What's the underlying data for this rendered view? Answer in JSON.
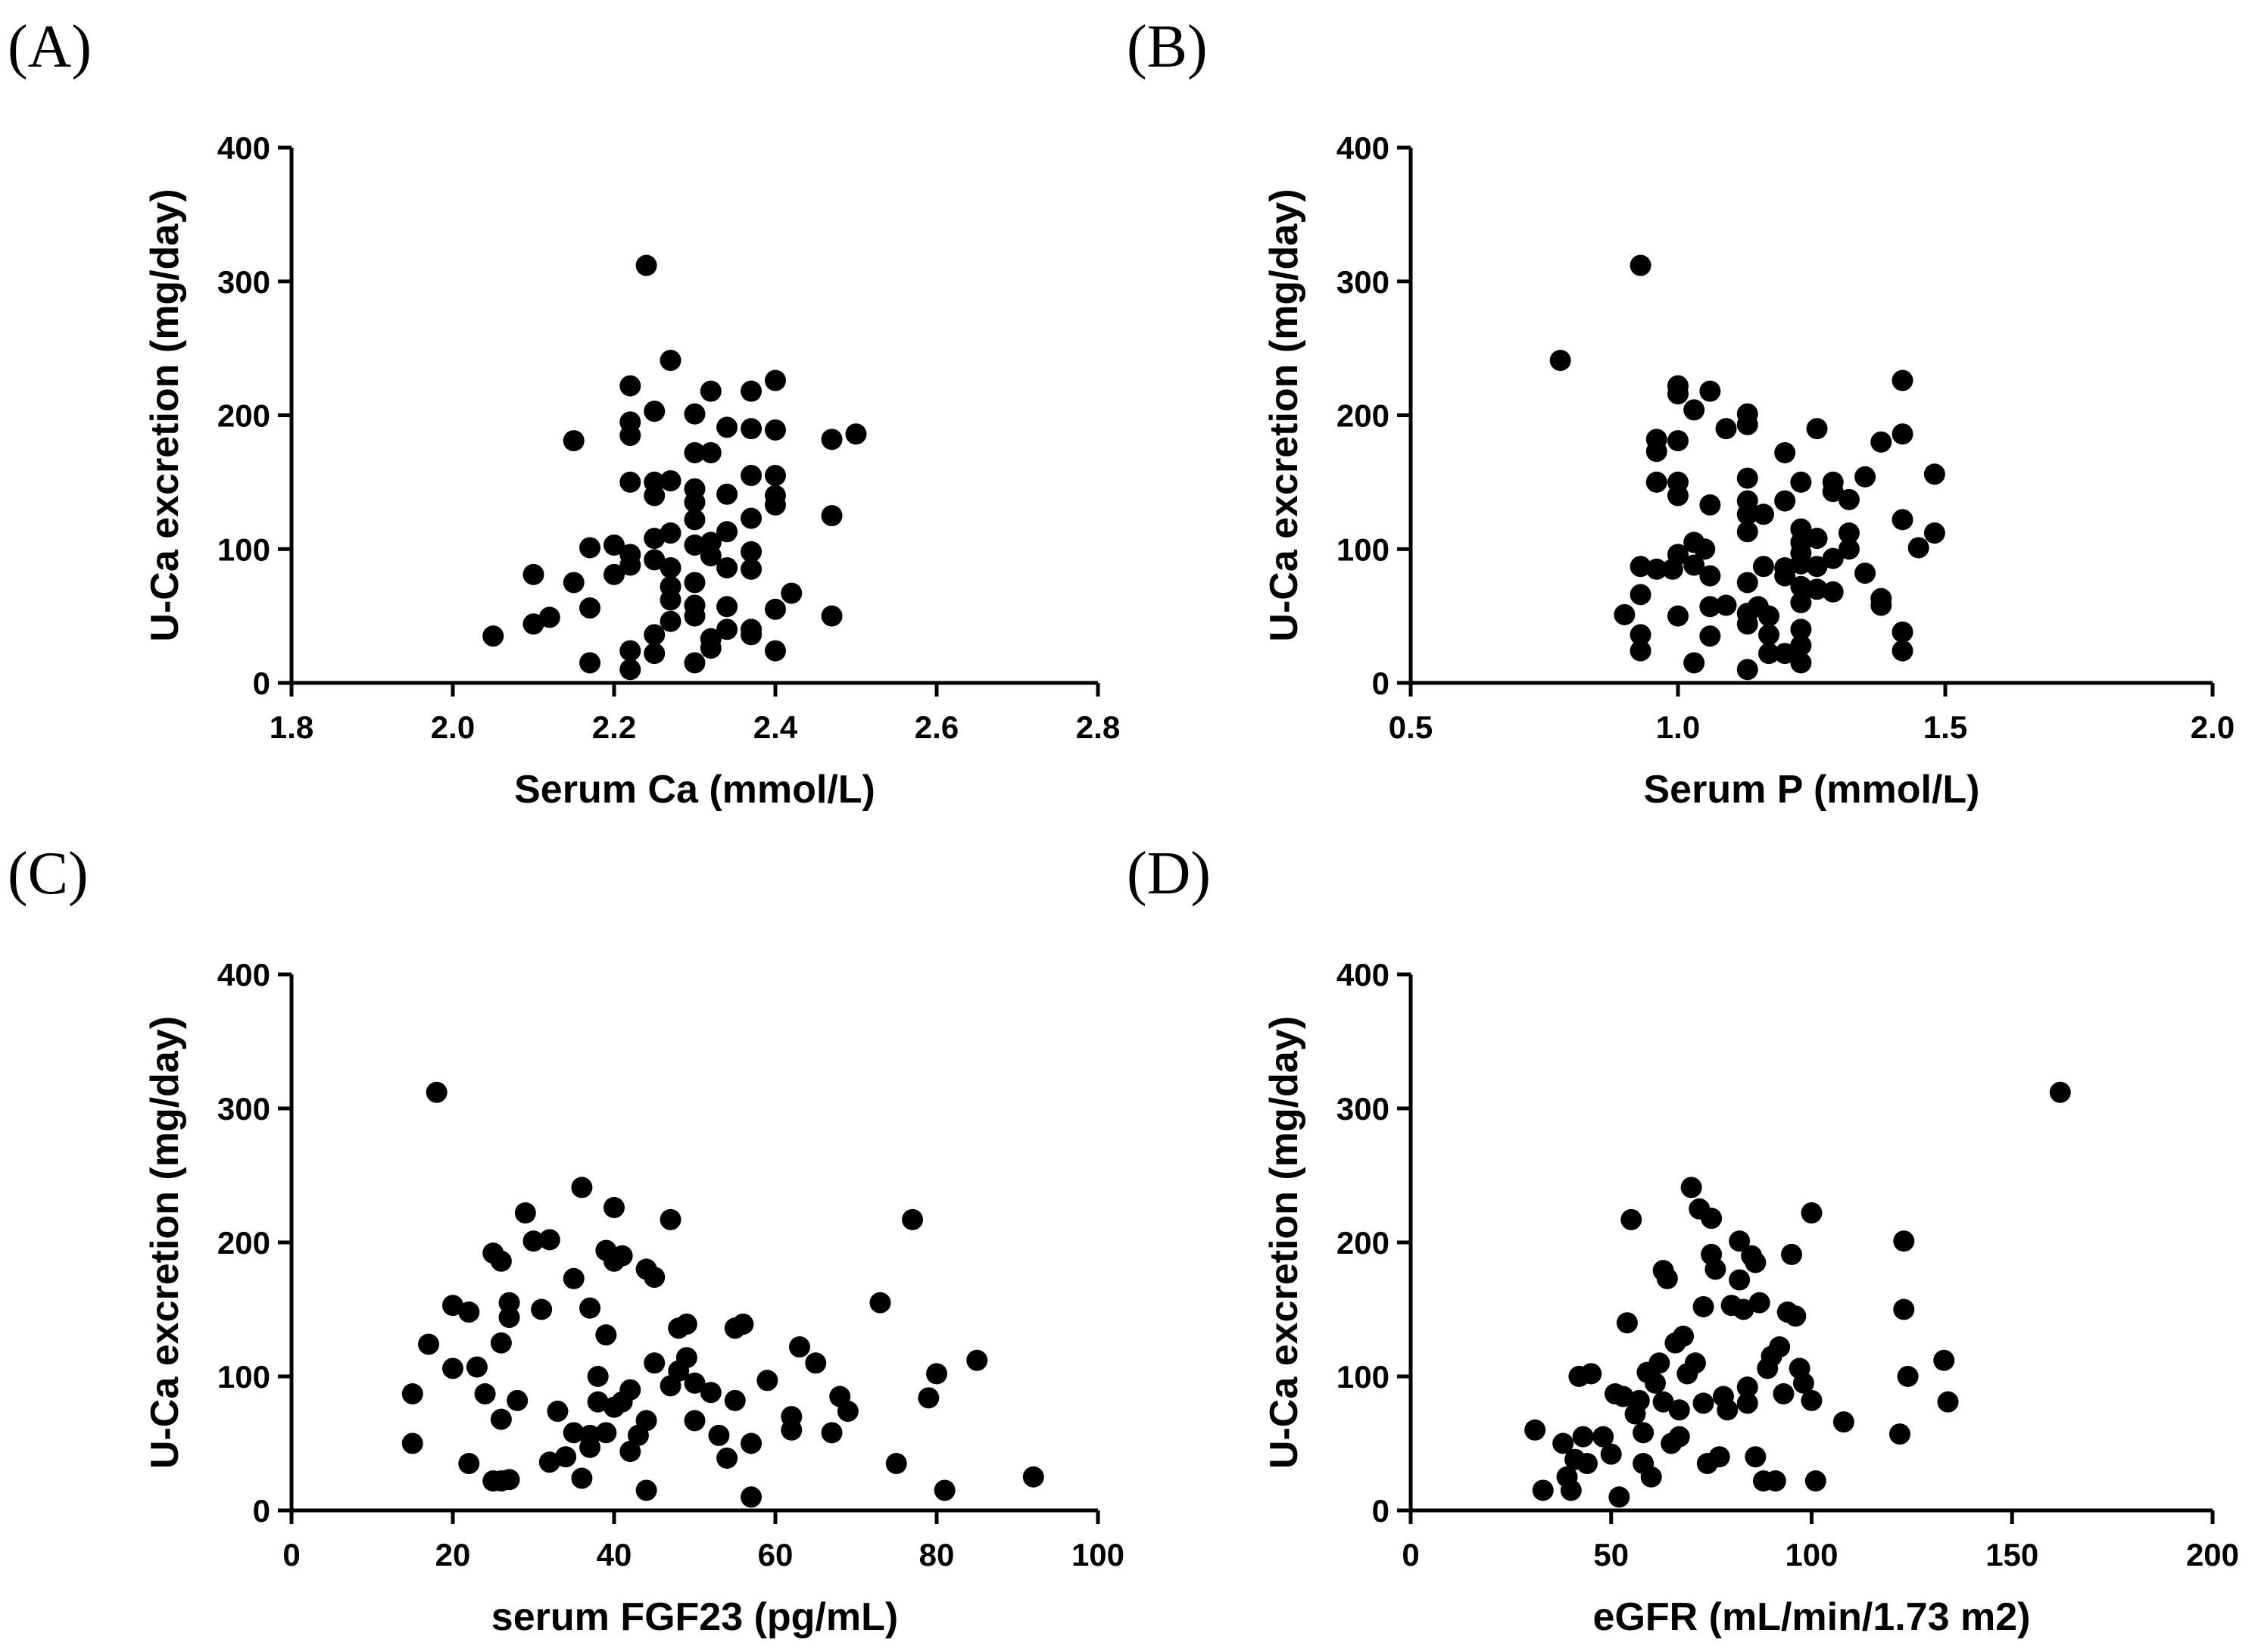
{
  "chart_data": [
    {
      "type": "scatter",
      "panel_label": "(A)",
      "xlabel": "Serum Ca (mmol/L)",
      "ylabel": "U-Ca excretion (mg/day)",
      "xlim": [
        1.8,
        2.8
      ],
      "ylim": [
        0,
        400
      ],
      "xticks": [
        "1.8",
        "2.0",
        "2.2",
        "2.4",
        "2.6",
        "2.8"
      ],
      "yticks": [
        "0",
        "100",
        "200",
        "300",
        "400"
      ],
      "points": [
        [
          2.05,
          35
        ],
        [
          2.1,
          44
        ],
        [
          2.1,
          81
        ],
        [
          2.12,
          49
        ],
        [
          2.15,
          75
        ],
        [
          2.15,
          181
        ],
        [
          2.17,
          15
        ],
        [
          2.17,
          56
        ],
        [
          2.17,
          101
        ],
        [
          2.2,
          103
        ],
        [
          2.2,
          81
        ],
        [
          2.22,
          222
        ],
        [
          2.22,
          195
        ],
        [
          2.22,
          185
        ],
        [
          2.22,
          150
        ],
        [
          2.22,
          96
        ],
        [
          2.22,
          88
        ],
        [
          2.22,
          24
        ],
        [
          2.22,
          10
        ],
        [
          2.24,
          312
        ],
        [
          2.25,
          203
        ],
        [
          2.25,
          150
        ],
        [
          2.25,
          140
        ],
        [
          2.25,
          108
        ],
        [
          2.25,
          92
        ],
        [
          2.25,
          36
        ],
        [
          2.25,
          22
        ],
        [
          2.27,
          241
        ],
        [
          2.27,
          151
        ],
        [
          2.27,
          112
        ],
        [
          2.27,
          86
        ],
        [
          2.27,
          72
        ],
        [
          2.27,
          62
        ],
        [
          2.27,
          46
        ],
        [
          2.3,
          201
        ],
        [
          2.3,
          172
        ],
        [
          2.3,
          145
        ],
        [
          2.3,
          135
        ],
        [
          2.3,
          122
        ],
        [
          2.3,
          103
        ],
        [
          2.3,
          75
        ],
        [
          2.3,
          58
        ],
        [
          2.3,
          50
        ],
        [
          2.3,
          15
        ],
        [
          2.32,
          218
        ],
        [
          2.32,
          172
        ],
        [
          2.32,
          105
        ],
        [
          2.32,
          95
        ],
        [
          2.32,
          33
        ],
        [
          2.32,
          26
        ],
        [
          2.34,
          191
        ],
        [
          2.34,
          141
        ],
        [
          2.34,
          113
        ],
        [
          2.34,
          86
        ],
        [
          2.34,
          57
        ],
        [
          2.34,
          40
        ],
        [
          2.37,
          218
        ],
        [
          2.37,
          190
        ],
        [
          2.37,
          155
        ],
        [
          2.37,
          123
        ],
        [
          2.37,
          98
        ],
        [
          2.37,
          85
        ],
        [
          2.37,
          40
        ],
        [
          2.37,
          36
        ],
        [
          2.4,
          226
        ],
        [
          2.4,
          189
        ],
        [
          2.4,
          155
        ],
        [
          2.4,
          140
        ],
        [
          2.4,
          133
        ],
        [
          2.4,
          55
        ],
        [
          2.4,
          24
        ],
        [
          2.42,
          67
        ],
        [
          2.47,
          182
        ],
        [
          2.47,
          125
        ],
        [
          2.47,
          50
        ],
        [
          2.5,
          186
        ]
      ]
    },
    {
      "type": "scatter",
      "panel_label": "(B)",
      "xlabel": "Serum P (mmol/L)",
      "ylabel": "U-Ca excretion (mg/day)",
      "xlim": [
        0.5,
        2.0
      ],
      "ylim": [
        0,
        400
      ],
      "xticks": [
        "0.5",
        "1.0",
        "1.5",
        "2.0"
      ],
      "yticks": [
        "0",
        "100",
        "200",
        "300",
        "400"
      ],
      "points": [
        [
          0.78,
          241
        ],
        [
          0.9,
          51
        ],
        [
          0.93,
          312
        ],
        [
          0.93,
          87
        ],
        [
          0.93,
          66
        ],
        [
          0.93,
          36
        ],
        [
          0.93,
          24
        ],
        [
          0.96,
          182
        ],
        [
          0.96,
          173
        ],
        [
          0.96,
          150
        ],
        [
          0.96,
          85
        ],
        [
          0.99,
          85
        ],
        [
          1.0,
          222
        ],
        [
          1.0,
          216
        ],
        [
          1.0,
          181
        ],
        [
          1.0,
          150
        ],
        [
          1.0,
          140
        ],
        [
          1.0,
          96
        ],
        [
          1.0,
          50
        ],
        [
          1.03,
          204
        ],
        [
          1.03,
          105
        ],
        [
          1.03,
          88
        ],
        [
          1.03,
          15
        ],
        [
          1.05,
          100
        ],
        [
          1.06,
          218
        ],
        [
          1.06,
          133
        ],
        [
          1.06,
          80
        ],
        [
          1.06,
          57
        ],
        [
          1.06,
          35
        ],
        [
          1.09,
          190
        ],
        [
          1.09,
          58
        ],
        [
          1.13,
          201
        ],
        [
          1.13,
          193
        ],
        [
          1.13,
          153
        ],
        [
          1.13,
          136
        ],
        [
          1.13,
          126
        ],
        [
          1.13,
          113
        ],
        [
          1.13,
          75
        ],
        [
          1.13,
          52
        ],
        [
          1.13,
          44
        ],
        [
          1.13,
          10
        ],
        [
          1.15,
          57
        ],
        [
          1.16,
          126
        ],
        [
          1.16,
          87
        ],
        [
          1.17,
          50
        ],
        [
          1.17,
          36
        ],
        [
          1.17,
          22
        ],
        [
          1.2,
          172
        ],
        [
          1.2,
          136
        ],
        [
          1.2,
          86
        ],
        [
          1.2,
          80
        ],
        [
          1.2,
          22
        ],
        [
          1.23,
          150
        ],
        [
          1.23,
          115
        ],
        [
          1.23,
          105
        ],
        [
          1.23,
          97
        ],
        [
          1.23,
          89
        ],
        [
          1.23,
          72
        ],
        [
          1.23,
          60
        ],
        [
          1.23,
          40
        ],
        [
          1.23,
          28
        ],
        [
          1.23,
          15
        ],
        [
          1.26,
          190
        ],
        [
          1.26,
          108
        ],
        [
          1.26,
          87
        ],
        [
          1.26,
          70
        ],
        [
          1.29,
          150
        ],
        [
          1.29,
          143
        ],
        [
          1.29,
          93
        ],
        [
          1.29,
          68
        ],
        [
          1.32,
          137
        ],
        [
          1.32,
          112
        ],
        [
          1.32,
          100
        ],
        [
          1.35,
          154
        ],
        [
          1.35,
          82
        ],
        [
          1.38,
          180
        ],
        [
          1.38,
          63
        ],
        [
          1.38,
          58
        ],
        [
          1.42,
          226
        ],
        [
          1.42,
          186
        ],
        [
          1.42,
          122
        ],
        [
          1.42,
          38
        ],
        [
          1.42,
          24
        ],
        [
          1.45,
          101
        ],
        [
          1.48,
          156
        ],
        [
          1.48,
          112
        ]
      ]
    },
    {
      "type": "scatter",
      "panel_label": "(C)",
      "xlabel": "serum FGF23 (pg/mL)",
      "ylabel": "U-Ca excretion (mg/day)",
      "xlim": [
        0,
        100
      ],
      "ylim": [
        0,
        400
      ],
      "xticks": [
        "0",
        "20",
        "40",
        "60",
        "80",
        "100"
      ],
      "yticks": [
        "0",
        "100",
        "200",
        "300",
        "400"
      ],
      "points": [
        [
          15,
          87
        ],
        [
          15,
          50
        ],
        [
          17,
          124
        ],
        [
          18,
          312
        ],
        [
          20,
          153
        ],
        [
          20,
          106
        ],
        [
          22,
          148
        ],
        [
          22,
          35
        ],
        [
          23,
          107
        ],
        [
          24,
          87
        ],
        [
          25,
          192
        ],
        [
          25,
          22
        ],
        [
          26,
          186
        ],
        [
          26,
          125
        ],
        [
          26,
          68
        ],
        [
          26,
          22
        ],
        [
          27,
          23
        ],
        [
          27,
          155
        ],
        [
          27,
          144
        ],
        [
          28,
          82
        ],
        [
          29,
          222
        ],
        [
          30,
          201
        ],
        [
          31,
          150
        ],
        [
          32,
          36
        ],
        [
          32,
          202
        ],
        [
          33,
          74
        ],
        [
          34,
          40
        ],
        [
          35,
          173
        ],
        [
          35,
          58
        ],
        [
          36,
          24
        ],
        [
          36,
          241
        ],
        [
          37,
          47
        ],
        [
          37,
          151
        ],
        [
          37,
          56
        ],
        [
          38,
          100
        ],
        [
          38,
          81
        ],
        [
          39,
          131
        ],
        [
          39,
          194
        ],
        [
          39,
          58
        ],
        [
          40,
          226
        ],
        [
          40,
          186
        ],
        [
          40,
          77
        ],
        [
          41,
          190
        ],
        [
          41,
          81
        ],
        [
          42,
          44
        ],
        [
          42,
          90
        ],
        [
          43,
          56
        ],
        [
          44,
          15
        ],
        [
          44,
          180
        ],
        [
          44,
          67
        ],
        [
          45,
          174
        ],
        [
          45,
          110
        ],
        [
          47,
          217
        ],
        [
          47,
          93
        ],
        [
          48,
          136
        ],
        [
          48,
          104
        ],
        [
          49,
          114
        ],
        [
          49,
          139
        ],
        [
          50,
          95
        ],
        [
          50,
          67
        ],
        [
          52,
          88
        ],
        [
          53,
          56
        ],
        [
          54,
          39
        ],
        [
          55,
          82
        ],
        [
          55,
          136
        ],
        [
          56,
          139
        ],
        [
          57,
          10
        ],
        [
          57,
          50
        ],
        [
          59,
          97
        ],
        [
          62,
          70
        ],
        [
          62,
          60
        ],
        [
          63,
          122
        ],
        [
          65,
          110
        ],
        [
          67,
          58
        ],
        [
          68,
          85
        ],
        [
          69,
          74
        ],
        [
          73,
          155
        ],
        [
          75,
          35
        ],
        [
          77,
          217
        ],
        [
          79,
          84
        ],
        [
          80,
          102
        ],
        [
          81,
          15
        ],
        [
          85,
          112
        ],
        [
          92,
          25
        ]
      ]
    },
    {
      "type": "scatter",
      "panel_label": "(D)",
      "xlabel": "eGFR (mL/min/1.73 m2)",
      "ylabel": "U-Ca excretion (mg/day)",
      "xlim": [
        0,
        200
      ],
      "ylim": [
        0,
        400
      ],
      "xticks": [
        "0",
        "50",
        "100",
        "150",
        "200"
      ],
      "yticks": [
        "0",
        "100",
        "200",
        "300",
        "400"
      ],
      "points": [
        [
          31,
          60
        ],
        [
          33,
          15
        ],
        [
          38,
          50
        ],
        [
          39,
          25
        ],
        [
          40,
          15
        ],
        [
          41,
          38
        ],
        [
          42,
          100
        ],
        [
          43,
          55
        ],
        [
          44,
          35
        ],
        [
          45,
          102
        ],
        [
          48,
          55
        ],
        [
          50,
          42
        ],
        [
          51,
          87
        ],
        [
          52,
          10
        ],
        [
          53,
          85
        ],
        [
          54,
          140
        ],
        [
          55,
          217
        ],
        [
          56,
          72
        ],
        [
          57,
          82
        ],
        [
          58,
          58
        ],
        [
          58,
          35
        ],
        [
          59,
          103
        ],
        [
          60,
          25
        ],
        [
          61,
          95
        ],
        [
          62,
          110
        ],
        [
          63,
          81
        ],
        [
          63,
          179
        ],
        [
          64,
          173
        ],
        [
          65,
          50
        ],
        [
          66,
          125
        ],
        [
          67,
          55
        ],
        [
          67,
          75
        ],
        [
          68,
          130
        ],
        [
          69,
          102
        ],
        [
          70,
          241
        ],
        [
          71,
          110
        ],
        [
          72,
          225
        ],
        [
          73,
          80
        ],
        [
          73,
          152
        ],
        [
          74,
          35
        ],
        [
          75,
          218
        ],
        [
          75,
          191
        ],
        [
          76,
          180
        ],
        [
          77,
          40
        ],
        [
          78,
          85
        ],
        [
          79,
          75
        ],
        [
          80,
          153
        ],
        [
          82,
          201
        ],
        [
          82,
          172
        ],
        [
          83,
          150
        ],
        [
          84,
          92
        ],
        [
          84,
          80
        ],
        [
          85,
          190
        ],
        [
          86,
          40
        ],
        [
          86,
          185
        ],
        [
          87,
          155
        ],
        [
          88,
          22
        ],
        [
          89,
          106
        ],
        [
          90,
          115
        ],
        [
          91,
          22
        ],
        [
          92,
          122
        ],
        [
          93,
          87
        ],
        [
          94,
          148
        ],
        [
          95,
          191
        ],
        [
          96,
          145
        ],
        [
          97,
          106
        ],
        [
          98,
          95
        ],
        [
          100,
          222
        ],
        [
          100,
          82
        ],
        [
          101,
          22
        ],
        [
          108,
          66
        ],
        [
          122,
          57
        ],
        [
          123,
          201
        ],
        [
          123,
          150
        ],
        [
          124,
          100
        ],
        [
          133,
          112
        ],
        [
          134,
          81
        ],
        [
          162,
          312
        ]
      ]
    }
  ]
}
